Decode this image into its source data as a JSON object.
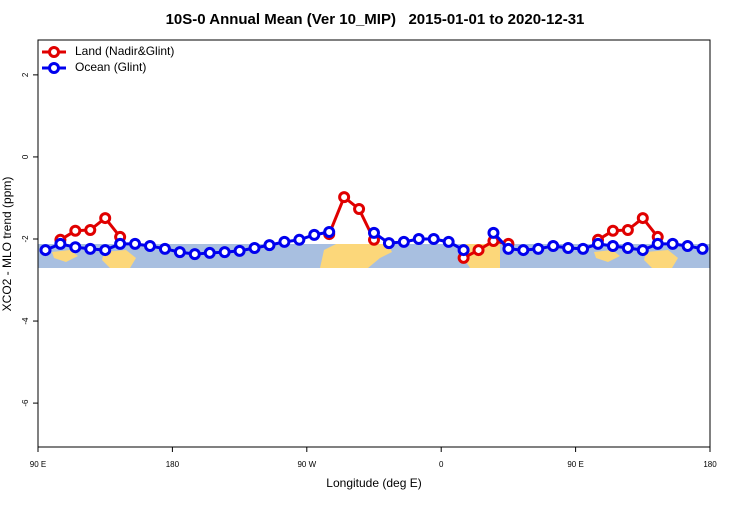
{
  "chart_data": {
    "type": "line",
    "title": "10S-0 Annual Mean (Ver 10_MIP)   2015-01-01 to 2020-12-31",
    "x_label": "Longitude (deg E)",
    "y_label": "XCO2 - MLO trend (ppm)",
    "x": [
      95,
      105,
      115,
      125,
      135,
      145,
      155,
      165,
      175,
      185,
      195,
      205,
      215,
      225,
      235,
      245,
      255,
      265,
      275,
      285,
      295,
      305,
      315,
      325,
      335,
      345,
      355,
      365,
      375,
      385,
      395,
      405,
      415,
      425,
      435,
      445,
      455,
      465,
      475,
      485,
      495,
      505,
      515,
      525,
      535
    ],
    "series": [
      {
        "name": "Land (Nadir&Glint)",
        "color": "#e00000",
        "values": [
          null,
          -2.02,
          -1.8,
          -1.78,
          -1.49,
          -1.95,
          null,
          null,
          null,
          null,
          null,
          null,
          null,
          null,
          null,
          null,
          null,
          null,
          null,
          -1.88,
          -0.98,
          -1.27,
          -2.02,
          null,
          null,
          null,
          null,
          null,
          -2.46,
          -2.27,
          -2.05,
          -2.12,
          null,
          null,
          null,
          null,
          null,
          -2.02,
          -1.8,
          -1.78,
          -1.49,
          -1.95,
          null,
          null,
          null
        ]
      },
      {
        "name": "Ocean (Glint)",
        "color": "#0000ee",
        "values": [
          -2.27,
          -2.12,
          -2.2,
          -2.24,
          -2.27,
          -2.12,
          -2.12,
          -2.17,
          -2.24,
          -2.32,
          -2.37,
          -2.34,
          -2.32,
          -2.29,
          -2.22,
          -2.15,
          -2.07,
          -2.02,
          -1.9,
          -1.83,
          null,
          null,
          -1.85,
          -2.1,
          -2.07,
          -2.0,
          -2.0,
          -2.07,
          -2.27,
          null,
          -1.85,
          -2.24,
          -2.27,
          -2.24,
          -2.17,
          -2.22,
          -2.24,
          -2.12,
          -2.17,
          -2.22,
          -2.27,
          -2.12,
          -2.12,
          -2.17,
          -2.24
        ]
      }
    ],
    "xlim": [
      90,
      540
    ],
    "xticks": [
      {
        "value": 90,
        "label": "90 E"
      },
      180,
      {
        "value": 270,
        "label": "90 W"
      },
      {
        "value": 360,
        "label": "0"
      },
      {
        "value": 450,
        "label": "90 E"
      },
      {
        "value": 540,
        "label": "180"
      }
    ],
    "ylim": [
      -7.07,
      2.85
    ],
    "yticks": [
      2,
      0,
      -2,
      -4,
      -6
    ],
    "legend": "top-left"
  }
}
